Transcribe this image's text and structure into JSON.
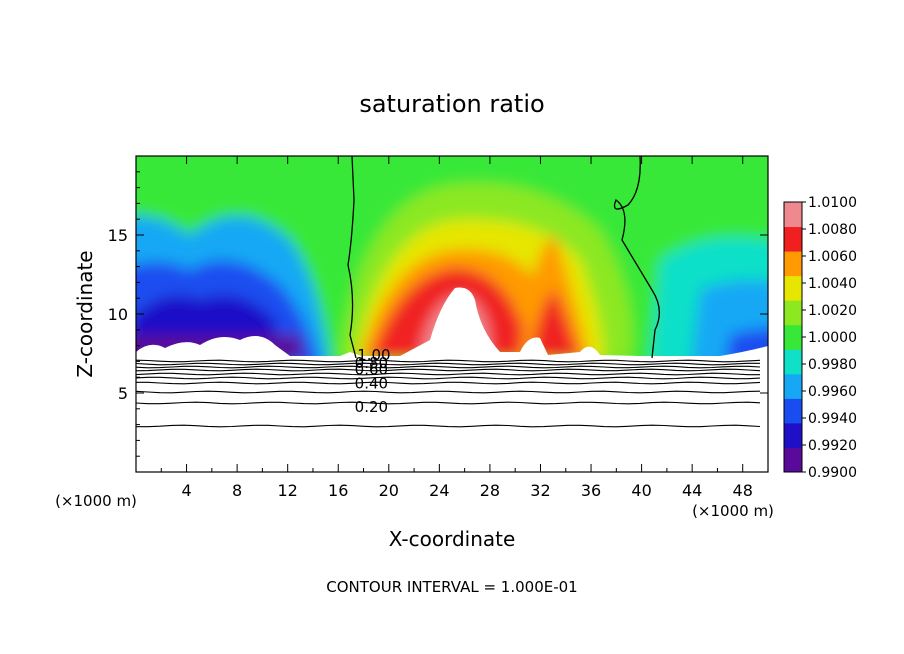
{
  "chart_data": {
    "type": "heatmap",
    "title": "saturation ratio",
    "xlabel": "X-coordinate",
    "ylabel": "Z-coordinate",
    "x_unit_left": "(×1000 m)",
    "x_unit_right": "(×1000 m)",
    "xlim": [
      0,
      50
    ],
    "ylim": [
      0,
      20
    ],
    "x_ticks": [
      4,
      8,
      12,
      16,
      20,
      24,
      28,
      32,
      36,
      40,
      44,
      48
    ],
    "y_ticks": [
      5,
      10,
      15
    ],
    "colorbar": {
      "levels": [
        0.99,
        0.992,
        0.994,
        0.996,
        0.998,
        1.0,
        1.002,
        1.004,
        1.006,
        1.008,
        1.01
      ],
      "labels": [
        "0.9900",
        "0.9920",
        "0.9940",
        "0.9960",
        "0.9980",
        "1.0000",
        "1.0020",
        "1.0040",
        "1.0060",
        "1.0080",
        "1.0100"
      ],
      "colors": [
        "#5a0a9a",
        "#1f10c8",
        "#1a4df0",
        "#17a8f5",
        "#10e0c8",
        "#38e838",
        "#8ce820",
        "#e6e600",
        "#ff9a00",
        "#f02020",
        "#f08890"
      ]
    },
    "contour_labels": [
      {
        "text": "1.00",
        "x": 17.5,
        "z": 7.4
      },
      {
        "text": "0.80",
        "x": 17.3,
        "z": 6.9
      },
      {
        "text": "0.60",
        "x": 17.3,
        "z": 6.5
      },
      {
        "text": "0.40",
        "x": 17.3,
        "z": 5.6
      },
      {
        "text": "0.20",
        "x": 17.3,
        "z": 4.1
      }
    ],
    "contour_interval_text": "CONTOUR INTERVAL = 1.000E-01"
  }
}
